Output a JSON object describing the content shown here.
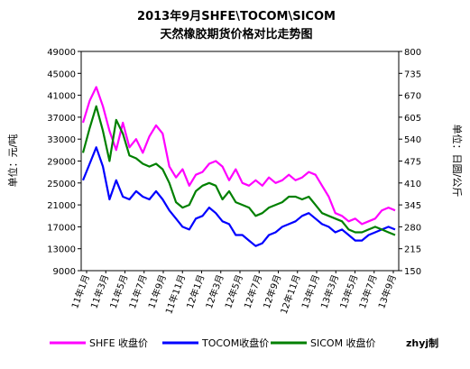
{
  "chart_data": {
    "type": "line",
    "title": "2013年9月SHFE\\TOCOM\\SICOM",
    "subtitle": "天然橡胶期货价格对比走势图",
    "ylabel_left": "单位：元/吨",
    "ylabel_right": "单位：日圆/公斤",
    "ylim_left": [
      9000,
      49000
    ],
    "ylim_right": [
      150,
      800
    ],
    "yticks_left": [
      "9000",
      "13000",
      "17000",
      "21000",
      "25000",
      "29000",
      "33000",
      "37000",
      "41000",
      "45000",
      "49000"
    ],
    "yticks_right": [
      "150",
      "215",
      "280",
      "345",
      "410",
      "475",
      "540",
      "605",
      "670",
      "735",
      "800"
    ],
    "x_labels": [
      "11年1月",
      "11年3月",
      "11年5月",
      "11年7月",
      "11年9月",
      "11年11月",
      "12年1月",
      "12年3月",
      "12年5月",
      "12年7月",
      "12年9月",
      "12年11月",
      "13年1月",
      "13年3月",
      "13年5月",
      "13年7月",
      "13年9月"
    ],
    "grid": false,
    "legend_position": "bottom",
    "series": [
      {
        "name": "SHFE 收盘价",
        "axis": "left",
        "color": "#ff00ff",
        "values": [
          36000,
          40000,
          42500,
          39000,
          34500,
          31000,
          36000,
          31500,
          33000,
          30500,
          33500,
          35500,
          34000,
          28000,
          26000,
          27500,
          24500,
          26500,
          27000,
          28500,
          29000,
          28000,
          25500,
          27500,
          25000,
          24500,
          25500,
          24500,
          26000,
          25000,
          25500,
          26500,
          25500,
          26000,
          27000,
          26500,
          24500,
          22500,
          19500,
          19000,
          18000,
          18500,
          17500,
          18000,
          18500,
          20000,
          20500,
          20000
        ]
      },
      {
        "name": "TOCOM收盘价",
        "axis": "left",
        "color": "#0000ff",
        "values": [
          25500,
          28500,
          31500,
          28000,
          22000,
          25500,
          22500,
          22000,
          23500,
          22500,
          22000,
          23500,
          22000,
          20000,
          18500,
          17000,
          16500,
          18500,
          19000,
          20500,
          19500,
          18000,
          17500,
          15500,
          15500,
          14500,
          13500,
          14000,
          15500,
          16000,
          17000,
          17500,
          18000,
          19000,
          19500,
          18500,
          17500,
          17000,
          16000,
          16500,
          15500,
          14500,
          14500,
          15500,
          16000,
          16500,
          17000,
          16500
        ]
      },
      {
        "name": "SICOM 收盘价",
        "axis": "left",
        "color": "#008000",
        "values": [
          30500,
          35000,
          39000,
          34500,
          29000,
          36500,
          34000,
          30000,
          29500,
          28500,
          28000,
          28500,
          27500,
          25000,
          21500,
          20500,
          21000,
          23500,
          24500,
          25000,
          24500,
          22000,
          23500,
          21500,
          21000,
          20500,
          19000,
          19500,
          20500,
          21000,
          21500,
          22500,
          22500,
          22000,
          22500,
          21000,
          19500,
          19000,
          18500,
          18000,
          16500,
          16000,
          16000,
          16500,
          17000,
          16500,
          16000,
          15500
        ]
      }
    ]
  },
  "credit": "zhyj制"
}
